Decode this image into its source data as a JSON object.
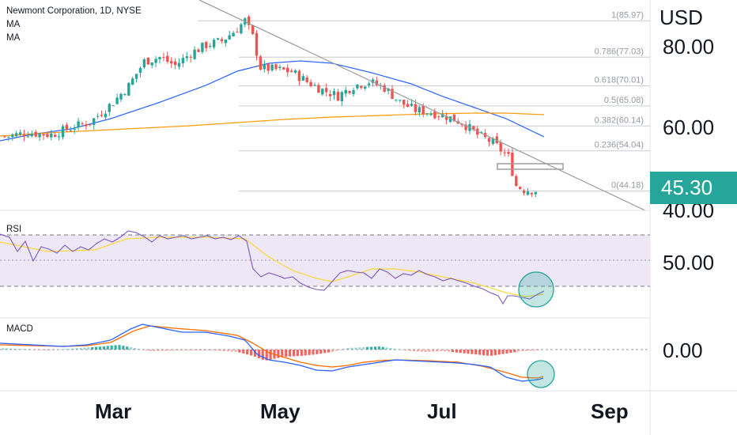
{
  "header": {
    "title": "Newmont Corporation, 1D, NYSE",
    "indicator_1": "MA",
    "indicator_2": "MA"
  },
  "price_axis": {
    "currency": "USD",
    "labels": [
      "80.00",
      "60.00",
      "40.00"
    ],
    "last_price": "45.30"
  },
  "colors": {
    "up": "#26a69a",
    "down": "#ef5350",
    "ma_fast": "#2962ff",
    "ma_slow": "#ff9800",
    "trendline": "#9a9a9a",
    "price_tag": "#26a69a",
    "rsi_line": "#7e57c2",
    "rsi_ma": "#fdd835",
    "rsi_band": "#ede7f6",
    "macd_line": "#2962ff",
    "signal_line": "#ff6d00",
    "highlight": "#26a69a"
  },
  "rsi_panel": {
    "label": "RSI",
    "axis_label": "50.00"
  },
  "macd_panel": {
    "label": "MACD",
    "axis_label": "0.00"
  },
  "time_axis": {
    "labels": [
      "Mar",
      "May",
      "Jul",
      "Sep"
    ]
  },
  "chart_data": [
    {
      "type": "candlestick",
      "title": "Newmont Corporation, 1D, NYSE",
      "ylabel": "USD",
      "ylim": [
        39,
        88
      ],
      "x_labels": [
        "Mar",
        "May",
        "Jul",
        "Sep"
      ],
      "series": [
        {
          "name": "MA",
          "kind": "line"
        },
        {
          "name": "MA",
          "kind": "line"
        }
      ],
      "close_approx": [
        57,
        58,
        61,
        66,
        71,
        78,
        83,
        78,
        82,
        85,
        86,
        75,
        74,
        71,
        67,
        69,
        70,
        68,
        64,
        63,
        62,
        59,
        56,
        52,
        47,
        45.3
      ],
      "fib_levels": [
        {
          "ratio": "1",
          "value": "85.97",
          "label": "1(85.97)"
        },
        {
          "ratio": "0.786",
          "value": "77.03",
          "label": "0.786(77.03)"
        },
        {
          "ratio": "0.618",
          "value": "70.01",
          "label": "0.618(70.01)"
        },
        {
          "ratio": "0.5",
          "value": "65.08",
          "label": "0.5(65.08)"
        },
        {
          "ratio": "0.382",
          "value": "60.14",
          "label": "0.382(60.14)"
        },
        {
          "ratio": "0.236",
          "value": "54.04",
          "label": "0.236(54.04)"
        },
        {
          "ratio": "0",
          "value": "44.18",
          "label": "0(44.18)"
        }
      ],
      "last_price": 45.3
    },
    {
      "type": "line",
      "title": "RSI",
      "series": [
        {
          "name": "RSI"
        }
      ],
      "axis_labels": [
        "50.00"
      ]
    },
    {
      "type": "bar",
      "title": "MACD",
      "series": [
        {
          "name": "MACD"
        }
      ],
      "axis_labels": [
        "0.00"
      ]
    }
  ]
}
